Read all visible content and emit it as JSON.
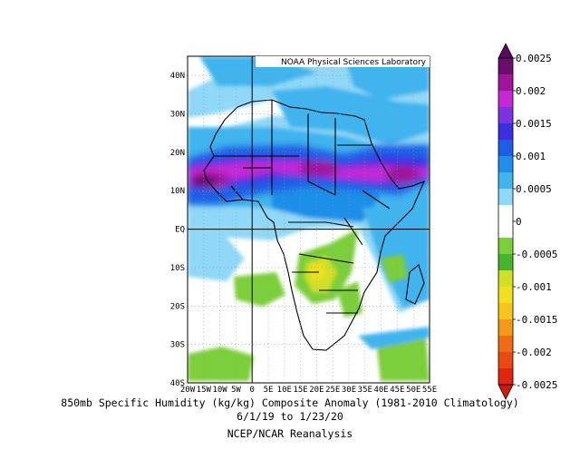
{
  "credit": "NOAA Physical Sciences Laboratory",
  "caption": {
    "line1": "850mb Specific Humidity (kg/kg) Composite Anomaly (1981-2010 Climatology)",
    "line2": "6/1/19  to 1/23/20",
    "line3": "NCEP/NCAR Reanalysis"
  },
  "map": {
    "lon_range": [
      -20,
      55
    ],
    "lat_range": [
      -40,
      45
    ],
    "lat_ticks": [
      {
        "value": 40,
        "label": "40N"
      },
      {
        "value": 30,
        "label": "30N"
      },
      {
        "value": 20,
        "label": "20N"
      },
      {
        "value": 10,
        "label": "10N"
      },
      {
        "value": 0,
        "label": "EQ"
      },
      {
        "value": -10,
        "label": "10S"
      },
      {
        "value": -20,
        "label": "20S"
      },
      {
        "value": -30,
        "label": "30S"
      },
      {
        "value": -40,
        "label": "40S"
      }
    ],
    "lon_ticks": [
      {
        "value": -20,
        "label": "20W"
      },
      {
        "value": -15,
        "label": "15W"
      },
      {
        "value": -10,
        "label": "10W"
      },
      {
        "value": -5,
        "label": "5W"
      },
      {
        "value": 0,
        "label": "0"
      },
      {
        "value": 5,
        "label": "5E"
      },
      {
        "value": 10,
        "label": "10E"
      },
      {
        "value": 15,
        "label": "15E"
      },
      {
        "value": 20,
        "label": "20E"
      },
      {
        "value": 25,
        "label": "25E"
      },
      {
        "value": 30,
        "label": "30E"
      },
      {
        "value": 35,
        "label": "35E"
      },
      {
        "value": 40,
        "label": "40E"
      },
      {
        "value": 45,
        "label": "45E"
      },
      {
        "value": 50,
        "label": "50E"
      },
      {
        "value": 55,
        "label": "55E"
      }
    ],
    "reference_lines": [
      "equator",
      "prime meridian"
    ],
    "grid": "dotted"
  },
  "colorbar": {
    "labels": [
      "0.0025",
      "0.002",
      "0.0015",
      "0.001",
      "0.0005",
      "0",
      "-0.0005",
      "-0.001",
      "-0.0015",
      "-0.002",
      "-0.0025"
    ],
    "colors": [
      "#6a0d6e",
      "#a0159a",
      "#c32ad6",
      "#7b32e0",
      "#3a2ee0",
      "#1e5ee6",
      "#1f8fe8",
      "#3fb4ef",
      "#8fd8f7",
      "#ffffff",
      "#ffffff",
      "#7cce3a",
      "#45b52c",
      "#cfe025",
      "#f0e020",
      "#f7c51c",
      "#f29a18",
      "#ee6d14",
      "#e84a12",
      "#e0260f"
    ],
    "arrow_top_color": "#5a0a5e",
    "arrow_bottom_color": "#d0180d"
  }
}
